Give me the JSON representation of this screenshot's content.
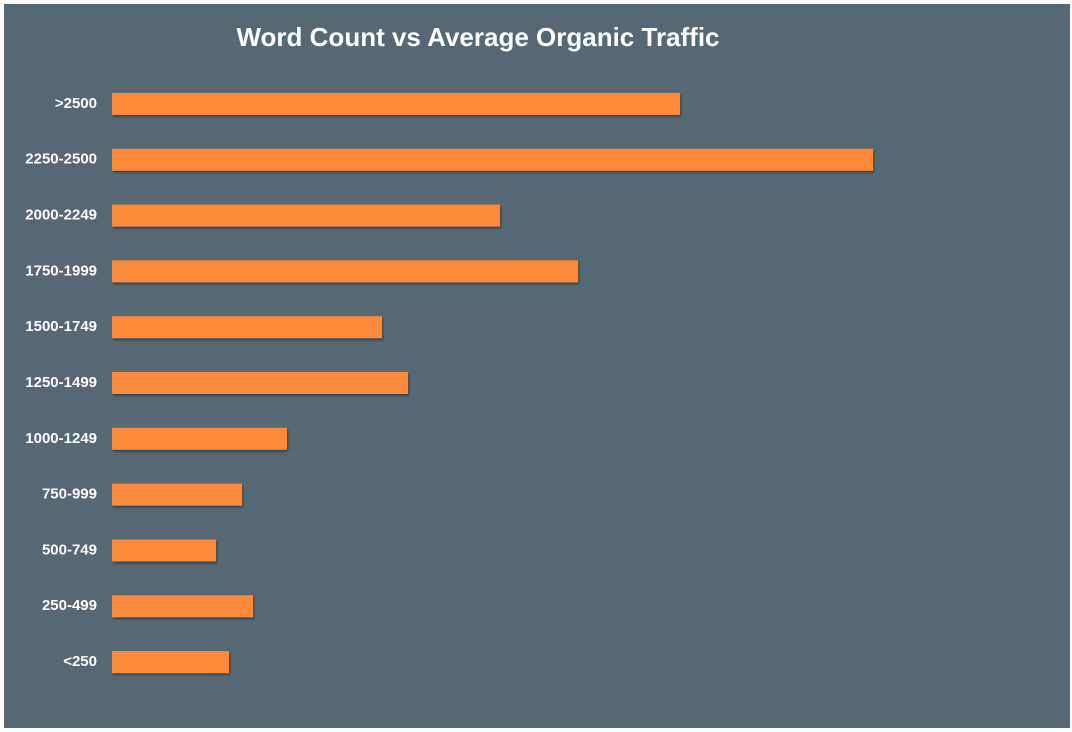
{
  "chart_data": {
    "type": "bar",
    "orientation": "horizontal",
    "title": "Word Count vs Average Organic Traffic",
    "categories": [
      ">2500",
      "2250-2500",
      "2000-2249",
      "1750-1999",
      "1500-1749",
      "1250-1499",
      "1000-1249",
      "750-999",
      "500-749",
      "250-499",
      "<250"
    ],
    "values": [
      568,
      761,
      388,
      466,
      270,
      296,
      175,
      130,
      104,
      141,
      117
    ],
    "color": "#fd8a3a",
    "xlim": [
      0,
      950
    ]
  }
}
